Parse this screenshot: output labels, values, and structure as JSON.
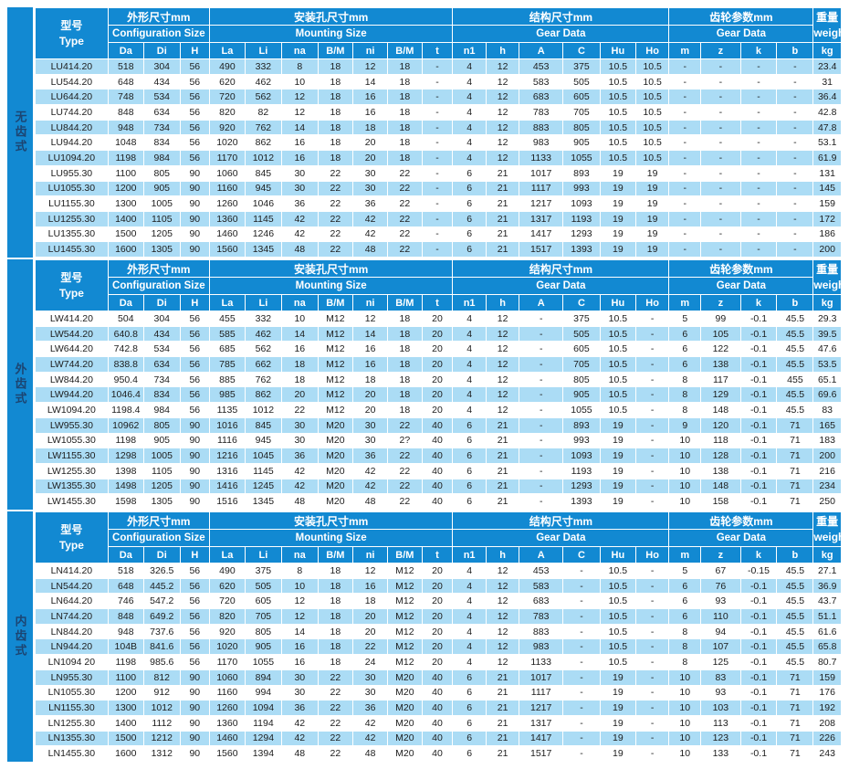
{
  "table": {
    "header": {
      "type_zh": "型号",
      "type_en": "Type",
      "groups": [
        {
          "zh": "外形尺寸mm",
          "en": "Configuration Size"
        },
        {
          "zh": "安装孔尺寸mm",
          "en": "Mounting Size"
        },
        {
          "zh": "结构尺寸mm",
          "en": "Gear Data"
        },
        {
          "zh": "齿轮参数mm",
          "en": "Gear Data"
        }
      ],
      "weight_zh": "重量",
      "weight_en": "weight",
      "cols": [
        "Da",
        "Di",
        "H",
        "La",
        "Li",
        "na",
        "B/M",
        "ni",
        "B/M",
        "t",
        "n1",
        "h",
        "A",
        "C",
        "Hu",
        "Ho",
        "m",
        "z",
        "k",
        "b",
        "kg"
      ]
    },
    "colors": {
      "header_blue": "#1289d2",
      "row_light_blue": "#abdcf5",
      "row_white": "#ffffff",
      "side_label_text": "#1c4572"
    },
    "sections": [
      {
        "label": "无齿式",
        "first_row_shade": "blue",
        "rows": [
          [
            "LU414.20",
            "518",
            "304",
            "56",
            "490",
            "332",
            "8",
            "18",
            "12",
            "18",
            "-",
            "4",
            "12",
            "453",
            "375",
            "10.5",
            "10.5",
            "-",
            "-",
            "-",
            "-",
            "23.4"
          ],
          [
            "LU544.20",
            "648",
            "434",
            "56",
            "620",
            "462",
            "10",
            "18",
            "14",
            "18",
            "-",
            "4",
            "12",
            "583",
            "505",
            "10.5",
            "10.5",
            "-",
            "-",
            "-",
            "-",
            "31"
          ],
          [
            "LU644.20",
            "748",
            "534",
            "56",
            "720",
            "562",
            "12",
            "18",
            "16",
            "18",
            "-",
            "4",
            "12",
            "683",
            "605",
            "10.5",
            "10.5",
            "-",
            "-",
            "-",
            "-",
            "36.4"
          ],
          [
            "LU744.20",
            "848",
            "634",
            "56",
            "820",
            "82",
            "12",
            "18",
            "16",
            "18",
            "-",
            "4",
            "12",
            "783",
            "705",
            "10.5",
            "10.5",
            "-",
            "-",
            "-",
            "-",
            "42.8"
          ],
          [
            "LU844.20",
            "948",
            "734",
            "56",
            "920",
            "762",
            "14",
            "18",
            "18",
            "18",
            "-",
            "4",
            "12",
            "883",
            "805",
            "10.5",
            "10.5",
            "-",
            "-",
            "-",
            "-",
            "47.8"
          ],
          [
            "LU944.20",
            "1048",
            "834",
            "56",
            "1020",
            "862",
            "16",
            "18",
            "20",
            "18",
            "-",
            "4",
            "12",
            "983",
            "905",
            "10.5",
            "10.5",
            "-",
            "-",
            "-",
            "-",
            "53.1"
          ],
          [
            "LU1094.20",
            "1198",
            "984",
            "56",
            "1170",
            "1012",
            "16",
            "18",
            "20",
            "18",
            "-",
            "4",
            "12",
            "1133",
            "1055",
            "10.5",
            "10.5",
            "-",
            "-",
            "-",
            "-",
            "61.9"
          ],
          [
            "LU955.30",
            "1100",
            "805",
            "90",
            "1060",
            "845",
            "30",
            "22",
            "30",
            "22",
            "-",
            "6",
            "21",
            "1017",
            "893",
            "19",
            "19",
            "-",
            "-",
            "-",
            "-",
            "131"
          ],
          [
            "LU1055.30",
            "1200",
            "905",
            "90",
            "1160",
            "945",
            "30",
            "22",
            "30",
            "22",
            "-",
            "6",
            "21",
            "1117",
            "993",
            "19",
            "19",
            "-",
            "-",
            "-",
            "-",
            "145"
          ],
          [
            "LU1155.30",
            "1300",
            "1005",
            "90",
            "1260",
            "1046",
            "36",
            "22",
            "36",
            "22",
            "-",
            "6",
            "21",
            "1217",
            "1093",
            "19",
            "19",
            "-",
            "-",
            "-",
            "-",
            "159"
          ],
          [
            "LU1255.30",
            "1400",
            "1105",
            "90",
            "1360",
            "1145",
            "42",
            "22",
            "42",
            "22",
            "-",
            "6",
            "21",
            "1317",
            "1193",
            "19",
            "19",
            "-",
            "-",
            "-",
            "-",
            "172"
          ],
          [
            "LU1355.30",
            "1500",
            "1205",
            "90",
            "1460",
            "1246",
            "42",
            "22",
            "42",
            "22",
            "-",
            "6",
            "21",
            "1417",
            "1293",
            "19",
            "19",
            "-",
            "-",
            "-",
            "-",
            "186"
          ],
          [
            "LU1455.30",
            "1600",
            "1305",
            "90",
            "1560",
            "1345",
            "48",
            "22",
            "48",
            "22",
            "-",
            "6",
            "21",
            "1517",
            "1393",
            "19",
            "19",
            "-",
            "-",
            "-",
            "-",
            "200"
          ]
        ]
      },
      {
        "label": "外齿式",
        "first_row_shade": "white",
        "rows": [
          [
            "LW414.20",
            "504",
            "304",
            "56",
            "455",
            "332",
            "10",
            "M12",
            "12",
            "18",
            "20",
            "4",
            "12",
            "-",
            "375",
            "10.5",
            "-",
            "5",
            "99",
            "-0.1",
            "45.5",
            "29.3"
          ],
          [
            "LW544.20",
            "640.8",
            "434",
            "56",
            "585",
            "462",
            "14",
            "M12",
            "14",
            "18",
            "20",
            "4",
            "12",
            "-",
            "505",
            "10.5",
            "-",
            "6",
            "105",
            "-0.1",
            "45.5",
            "39.5"
          ],
          [
            "LW644.20",
            "742.8",
            "534",
            "56",
            "685",
            "562",
            "16",
            "M12",
            "16",
            "18",
            "20",
            "4",
            "12",
            "-",
            "605",
            "10.5",
            "-",
            "6",
            "122",
            "-0.1",
            "45.5",
            "47.6"
          ],
          [
            "LW744.20",
            "838.8",
            "634",
            "56",
            "785",
            "662",
            "18",
            "M12",
            "16",
            "18",
            "20",
            "4",
            "12",
            "-",
            "705",
            "10.5",
            "-",
            "6",
            "138",
            "-0.1",
            "45.5",
            "53.5"
          ],
          [
            "LW844.20",
            "950.4",
            "734",
            "56",
            "885",
            "762",
            "18",
            "M12",
            "18",
            "18",
            "20",
            "4",
            "12",
            "-",
            "805",
            "10.5",
            "-",
            "8",
            "117",
            "-0.1",
            "455",
            "65.1"
          ],
          [
            "LW944.20",
            "1046.4",
            "834",
            "56",
            "985",
            "862",
            "20",
            "M12",
            "20",
            "18",
            "20",
            "4",
            "12",
            "-",
            "905",
            "10.5",
            "-",
            "8",
            "129",
            "-0.1",
            "45.5",
            "69.6"
          ],
          [
            "LW1094.20",
            "1198.4",
            "984",
            "56",
            "1135",
            "1012",
            "22",
            "M12",
            "20",
            "18",
            "20",
            "4",
            "12",
            "-",
            "1055",
            "10.5",
            "-",
            "8",
            "148",
            "-0.1",
            "45.5",
            "83"
          ],
          [
            "LW955.30",
            "10962",
            "805",
            "90",
            "1016",
            "845",
            "30",
            "M20",
            "30",
            "22",
            "40",
            "6",
            "21",
            "-",
            "893",
            "19",
            "-",
            "9",
            "120",
            "-0.1",
            "71",
            "165"
          ],
          [
            "LW1055.30",
            "1198",
            "905",
            "90",
            "1116",
            "945",
            "30",
            "M20",
            "30",
            "2?",
            "40",
            "6",
            "21",
            "-",
            "993",
            "19",
            "-",
            "10",
            "118",
            "-0.1",
            "71",
            "183"
          ],
          [
            "LW1155.30",
            "1298",
            "1005",
            "90",
            "1216",
            "1045",
            "36",
            "M20",
            "36",
            "22",
            "40",
            "6",
            "21",
            "-",
            "1093",
            "19",
            "-",
            "10",
            "128",
            "-0.1",
            "71",
            "200"
          ],
          [
            "LW1255.30",
            "1398",
            "1105",
            "90",
            "1316",
            "1145",
            "42",
            "M20",
            "42",
            "22",
            "40",
            "6",
            "21",
            "-",
            "1193",
            "19",
            "-",
            "10",
            "138",
            "-0.1",
            "71",
            "216"
          ],
          [
            "LW1355.30",
            "1498",
            "1205",
            "90",
            "1416",
            "1245",
            "42",
            "M20",
            "42",
            "22",
            "40",
            "6",
            "21",
            "-",
            "1293",
            "19",
            "-",
            "10",
            "148",
            "-0.1",
            "71",
            "234"
          ],
          [
            "LW1455.30",
            "1598",
            "1305",
            "90",
            "1516",
            "1345",
            "48",
            "M20",
            "48",
            "22",
            "40",
            "6",
            "21",
            "-",
            "1393",
            "19",
            "-",
            "10",
            "158",
            "-0.1",
            "71",
            "250"
          ]
        ]
      },
      {
        "label": "内齿式",
        "first_row_shade": "white",
        "rows": [
          [
            "LN414.20",
            "518",
            "326.5",
            "56",
            "490",
            "375",
            "8",
            "18",
            "12",
            "M12",
            "20",
            "4",
            "12",
            "453",
            "-",
            "10.5",
            "-",
            "5",
            "67",
            "-0.15",
            "45.5",
            "27.1"
          ],
          [
            "LN544.20",
            "648",
            "445.2",
            "56",
            "620",
            "505",
            "10",
            "18",
            "16",
            "M12",
            "20",
            "4",
            "12",
            "583",
            "-",
            "10.5",
            "-",
            "6",
            "76",
            "-0.1",
            "45.5",
            "36.9"
          ],
          [
            "LN644.20",
            "746",
            "547.2",
            "56",
            "720",
            "605",
            "12",
            "18",
            "18",
            "M12",
            "20",
            "4",
            "12",
            "683",
            "-",
            "10.5",
            "-",
            "6",
            "93",
            "-0.1",
            "45.5",
            "43.7"
          ],
          [
            "LN744.20",
            "848",
            "649.2",
            "56",
            "820",
            "705",
            "12",
            "18",
            "20",
            "M12",
            "20",
            "4",
            "12",
            "783",
            "-",
            "10.5",
            "-",
            "6",
            "110",
            "-0.1",
            "45.5",
            "51.1"
          ],
          [
            "LN844.20",
            "948",
            "737.6",
            "56",
            "920",
            "805",
            "14",
            "18",
            "20",
            "M12",
            "20",
            "4",
            "12",
            "883",
            "-",
            "10.5",
            "-",
            "8",
            "94",
            "-0.1",
            "45.5",
            "61.6"
          ],
          [
            "LN944.20",
            "104B",
            "841.6",
            "56",
            "1020",
            "905",
            "16",
            "18",
            "22",
            "M12",
            "20",
            "4",
            "12",
            "983",
            "-",
            "10.5",
            "-",
            "8",
            "107",
            "-0.1",
            "45.5",
            "65.8"
          ],
          [
            "LN1094 20",
            "1198",
            "985.6",
            "56",
            "1170",
            "1055",
            "16",
            "18",
            "24",
            "M12",
            "20",
            "4",
            "12",
            "1133",
            "-",
            "10.5",
            "-",
            "8",
            "125",
            "-0.1",
            "45.5",
            "80.7"
          ],
          [
            "LN955.30",
            "1100",
            "812",
            "90",
            "1060",
            "894",
            "30",
            "22",
            "30",
            "M20",
            "40",
            "6",
            "21",
            "1017",
            "-",
            "19",
            "-",
            "10",
            "83",
            "-0.1",
            "71",
            "159"
          ],
          [
            "LN1055.30",
            "1200",
            "912",
            "90",
            "1160",
            "994",
            "30",
            "22",
            "30",
            "M20",
            "40",
            "6",
            "21",
            "1117",
            "-",
            "19",
            "-",
            "10",
            "93",
            "-0.1",
            "71",
            "176"
          ],
          [
            "LN1155.30",
            "1300",
            "1012",
            "90",
            "1260",
            "1094",
            "36",
            "22",
            "36",
            "M20",
            "40",
            "6",
            "21",
            "1217",
            "-",
            "19",
            "-",
            "10",
            "103",
            "-0.1",
            "71",
            "192"
          ],
          [
            "LN1255.30",
            "1400",
            "1112",
            "90",
            "1360",
            "1194",
            "42",
            "22",
            "42",
            "M20",
            "40",
            "6",
            "21",
            "1317",
            "-",
            "19",
            "-",
            "10",
            "113",
            "-0.1",
            "71",
            "208"
          ],
          [
            "LN1355.30",
            "1500",
            "1212",
            "90",
            "1460",
            "1294",
            "42",
            "22",
            "42",
            "M20",
            "40",
            "6",
            "21",
            "1417",
            "-",
            "19",
            "-",
            "10",
            "123",
            "-0.1",
            "71",
            "226"
          ],
          [
            "LN1455.30",
            "1600",
            "1312",
            "90",
            "1560",
            "1394",
            "48",
            "22",
            "48",
            "M20",
            "40",
            "6",
            "21",
            "1517",
            "-",
            "19",
            "-",
            "10",
            "133",
            "-0.1",
            "71",
            "243"
          ]
        ]
      }
    ]
  }
}
